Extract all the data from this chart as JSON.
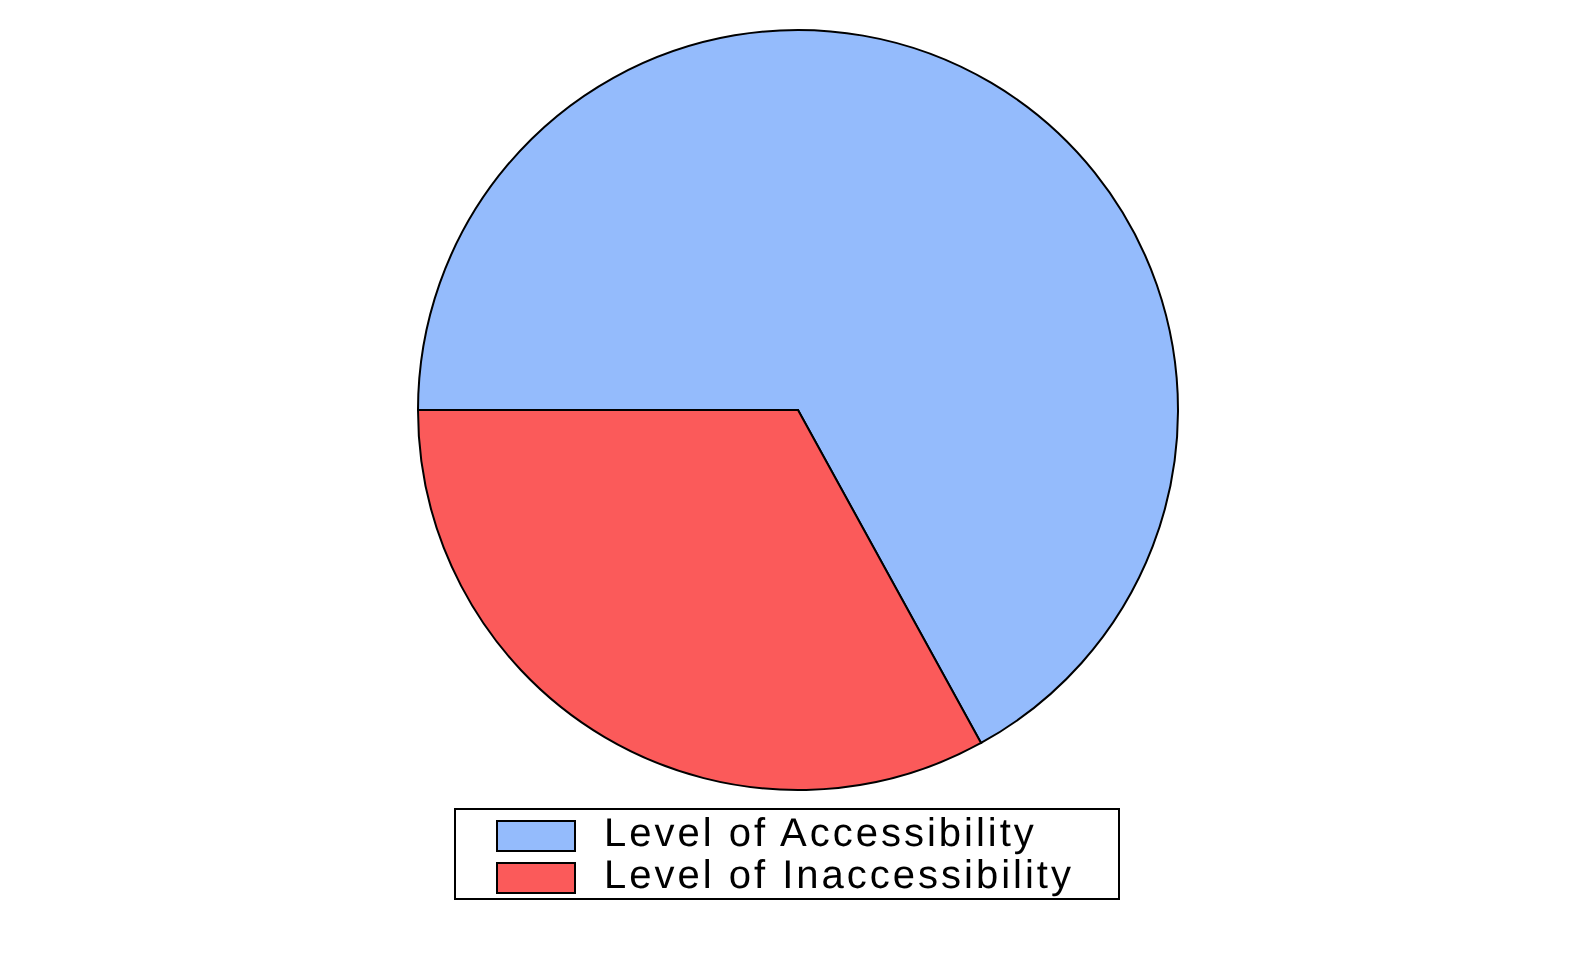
{
  "chart_data": {
    "type": "pie",
    "categories": [
      "Level of Accessibility",
      "Level of Inaccessibility"
    ],
    "values": [
      67,
      33
    ],
    "colors": [
      "#94bbfc",
      "#fb5a5a"
    ],
    "legend": "bottom"
  }
}
